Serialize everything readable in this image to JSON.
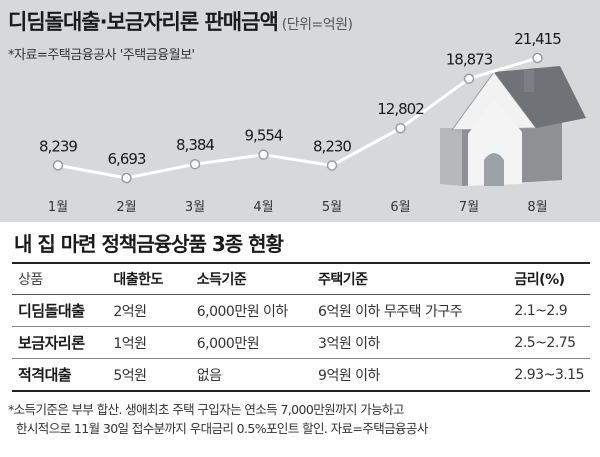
{
  "chart_data": {
    "type": "line",
    "title": "디딤돌대출·보금자리론 판매금액",
    "unit": "(단위=억원)",
    "source": "*자료=주택금융공사 '주택금융월보'",
    "categories": [
      "1월",
      "2월",
      "3월",
      "4월",
      "5월",
      "6월",
      "7월",
      "8월"
    ],
    "values": [
      8239,
      6693,
      8384,
      9554,
      8230,
      12802,
      18873,
      21415
    ],
    "value_labels": [
      "8,239",
      "6,693",
      "8,384",
      "9,554",
      "8,230",
      "12,802",
      "18,873",
      "21,415"
    ],
    "line_color": "#ffffff",
    "background_color": "#d7d8da",
    "icon": "house-icon"
  },
  "table": {
    "title": "내 집 마련 정책금융상품 3종 현황",
    "headers": [
      "상품",
      "대출한도",
      "소득기준",
      "주택기준",
      "금리(%)"
    ],
    "rows": [
      [
        "디딤돌대출",
        "2억원",
        "6,000만원 이하",
        "6억원 이하 무주택 가구주",
        "2.1~2.9"
      ],
      [
        "보금자리론",
        "1억원",
        "6,000만원",
        "3억원 이하",
        "2.5~2.75"
      ],
      [
        "적격대출",
        "5억원",
        "없음",
        "9억원 이하",
        "2.93~3.15"
      ]
    ]
  },
  "footnote": {
    "line1": "*소득기준은 부부 합산. 생애최초 주택 구입자는 연소득 7,000만원까지 가능하고",
    "line2": "한시적으로 11월 30일 접수분까지 우대금리 0.5%포인트 할인. 자료=주택금융공사"
  }
}
